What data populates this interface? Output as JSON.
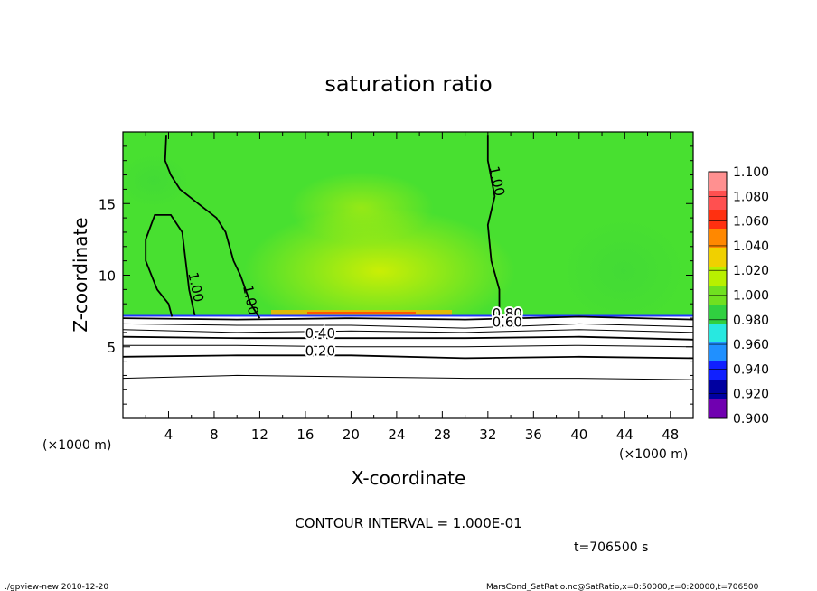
{
  "chart_data": {
    "type": "contour",
    "title": "saturation ratio",
    "xlabel": "X-coordinate",
    "ylabel": "Z-coordinate",
    "x_unit_left": "(×1000 m)",
    "x_unit_right": "(×1000 m)",
    "xlim": [
      0,
      50
    ],
    "ylim": [
      0,
      20
    ],
    "x_ticks": [
      4,
      8,
      12,
      16,
      20,
      24,
      28,
      32,
      36,
      40,
      44,
      48
    ],
    "y_ticks": [
      5,
      10,
      15
    ],
    "colorbar": {
      "levels": [
        "1.100",
        "1.080",
        "1.060",
        "1.040",
        "1.020",
        "1.000",
        "0.980",
        "0.960",
        "0.940",
        "0.920",
        "0.900"
      ],
      "colors": [
        "#ff9090",
        "#ff5050",
        "#ff3010",
        "#ff8800",
        "#f0d000",
        "#b8f000",
        "#70e020",
        "#30d040",
        "#28e8e0",
        "#2090ff",
        "#1020ff",
        "#0000a0",
        "#7000b0"
      ]
    },
    "contour_labels": [
      {
        "text": "1.00",
        "x": 6,
        "z": 9.1
      },
      {
        "text": "1.00",
        "x": 10.8,
        "z": 8.2
      },
      {
        "text": "1.00",
        "x": 32.4,
        "z": 16.5
      },
      {
        "text": "0.80",
        "x": 33.7,
        "z": 7.0
      },
      {
        "text": "0.60",
        "x": 33.7,
        "z": 6.4
      },
      {
        "text": "0.40",
        "x": 17.3,
        "z": 5.6
      },
      {
        "text": "0.20",
        "x": 17.3,
        "z": 4.4
      }
    ],
    "contour_lines": [
      {
        "level": "1.00",
        "points": [
          [
            4.3,
            7.1
          ],
          [
            4.0,
            8.0
          ],
          [
            3.0,
            9.0
          ],
          [
            2.0,
            11.0
          ],
          [
            2.0,
            12.5
          ],
          [
            2.8,
            14.2
          ],
          [
            4.2,
            14.2
          ],
          [
            5.2,
            13.0
          ],
          [
            5.5,
            11.0
          ],
          [
            5.8,
            9.0
          ],
          [
            6.3,
            7.2
          ]
        ]
      },
      {
        "level": "1.00",
        "points": [
          [
            3.8,
            19.8
          ],
          [
            3.7,
            18.0
          ],
          [
            4.2,
            17.0
          ],
          [
            5.0,
            16.0
          ],
          [
            6.6,
            15.0
          ],
          [
            8.2,
            14.0
          ],
          [
            9.0,
            13.0
          ],
          [
            9.7,
            11.0
          ],
          [
            10.3,
            10.0
          ],
          [
            11.2,
            8.0
          ],
          [
            12.0,
            7.0
          ]
        ]
      },
      {
        "level": "1.00",
        "points": [
          [
            32.0,
            19.8
          ],
          [
            32.0,
            18.0
          ],
          [
            32.6,
            15.5
          ],
          [
            32.0,
            13.5
          ],
          [
            32.3,
            11.0
          ],
          [
            33.0,
            9.0
          ],
          [
            33.0,
            7.3
          ]
        ]
      },
      {
        "level": "0.80",
        "points": [
          [
            0,
            7.0
          ],
          [
            10,
            6.9
          ],
          [
            20,
            7.0
          ],
          [
            30,
            6.9
          ],
          [
            40,
            7.1
          ],
          [
            50,
            6.9
          ]
        ]
      },
      {
        "level": "0.60",
        "points": [
          [
            0,
            6.6
          ],
          [
            10,
            6.5
          ],
          [
            20,
            6.5
          ],
          [
            30,
            6.3
          ],
          [
            40,
            6.6
          ],
          [
            50,
            6.4
          ]
        ]
      },
      {
        "level": "0.50",
        "points": [
          [
            0,
            6.2
          ],
          [
            10,
            6.0
          ],
          [
            20,
            6.1
          ],
          [
            30,
            6.0
          ],
          [
            40,
            6.2
          ],
          [
            50,
            6.0
          ]
        ]
      },
      {
        "level": "0.40",
        "points": [
          [
            0,
            5.7
          ],
          [
            10,
            5.6
          ],
          [
            20,
            5.6
          ],
          [
            30,
            5.6
          ],
          [
            40,
            5.7
          ],
          [
            50,
            5.5
          ]
        ]
      },
      {
        "level": "0.30",
        "points": [
          [
            0,
            5.1
          ],
          [
            10,
            5.1
          ],
          [
            20,
            5.0
          ],
          [
            30,
            5.0
          ],
          [
            40,
            5.1
          ],
          [
            50,
            5.0
          ]
        ]
      },
      {
        "level": "0.20",
        "points": [
          [
            0,
            4.3
          ],
          [
            10,
            4.4
          ],
          [
            20,
            4.4
          ],
          [
            30,
            4.2
          ],
          [
            40,
            4.3
          ],
          [
            50,
            4.2
          ]
        ]
      },
      {
        "level": "0.10",
        "points": [
          [
            0,
            2.8
          ],
          [
            10,
            3.0
          ],
          [
            20,
            2.9
          ],
          [
            30,
            2.8
          ],
          [
            40,
            2.8
          ],
          [
            50,
            2.7
          ]
        ]
      }
    ],
    "interface_z": 7.1
  },
  "annotations": {
    "contour_interval": "CONTOUR INTERVAL = 1.000E-01",
    "time": "t=706500 s",
    "footer_left": "./gpview-new  2010-12-20",
    "footer_right": "MarsCond_SatRatio.nc@SatRatio,x=0:50000,z=0:20000,t=706500"
  }
}
